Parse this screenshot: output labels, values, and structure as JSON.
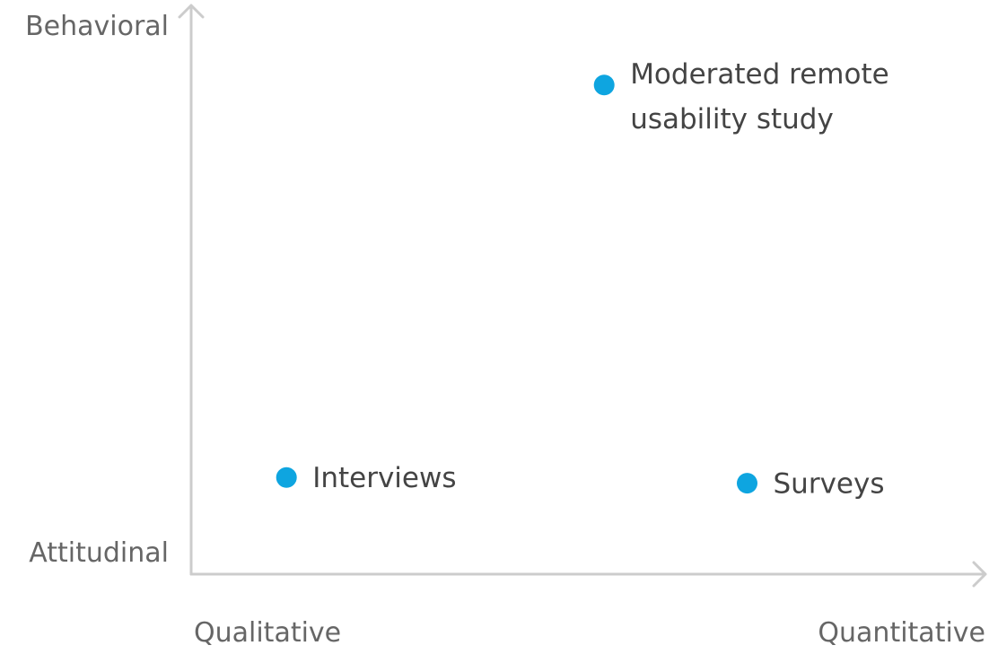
{
  "chart_data": {
    "type": "scatter",
    "title": "",
    "axes": {
      "x": {
        "low_label": "Qualitative",
        "high_label": "Quantitative",
        "range": [
          0,
          100
        ]
      },
      "y": {
        "low_label": "Attitudinal",
        "high_label": "Behavioral",
        "range": [
          0,
          100
        ]
      }
    },
    "grid": false,
    "legend": "none",
    "point_color": "#0ea5e0",
    "axis_color": "#cccccc",
    "points": [
      {
        "label_lines": [
          "Moderated remote",
          "usability study"
        ],
        "x": 52,
        "y": 86
      },
      {
        "label_lines": [
          "Interviews"
        ],
        "x": 12,
        "y": 17
      },
      {
        "label_lines": [
          "Surveys"
        ],
        "x": 70,
        "y": 16
      }
    ]
  }
}
